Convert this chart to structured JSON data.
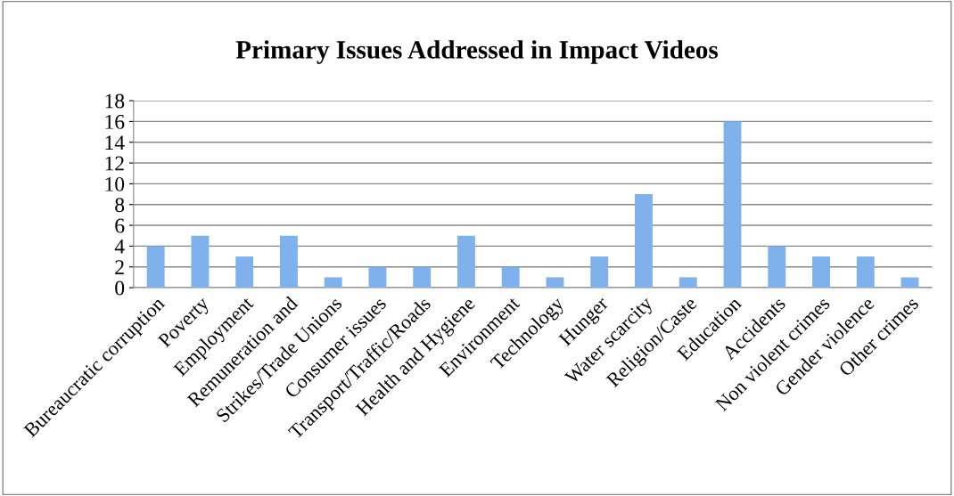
{
  "chart_data": {
    "type": "bar",
    "title": "Primary Issues Addressed in Impact Videos",
    "categories": [
      "Bureaucratic corruption",
      "Poverty",
      "Employment",
      "Remuneration and",
      "Strikes/Trade Unions",
      "Consumer issues",
      "Transport/Traffic/Roads",
      "Health and Hygiene",
      "Environment",
      "Technology",
      "Hunger",
      "Water scarcity",
      "Religion/Caste",
      "Education",
      "Accidents",
      "Non violent crimes",
      "Gender violence",
      "Other crimes"
    ],
    "values": [
      4,
      5,
      3,
      5,
      1,
      2,
      2,
      5,
      2,
      1,
      3,
      9,
      1,
      16,
      4,
      3,
      3,
      1
    ],
    "color": "#7fb2ec",
    "ylim": [
      0,
      18
    ],
    "yticks": [
      0,
      2,
      4,
      6,
      8,
      10,
      12,
      14,
      16,
      18
    ],
    "grid": "y",
    "legend": false
  }
}
